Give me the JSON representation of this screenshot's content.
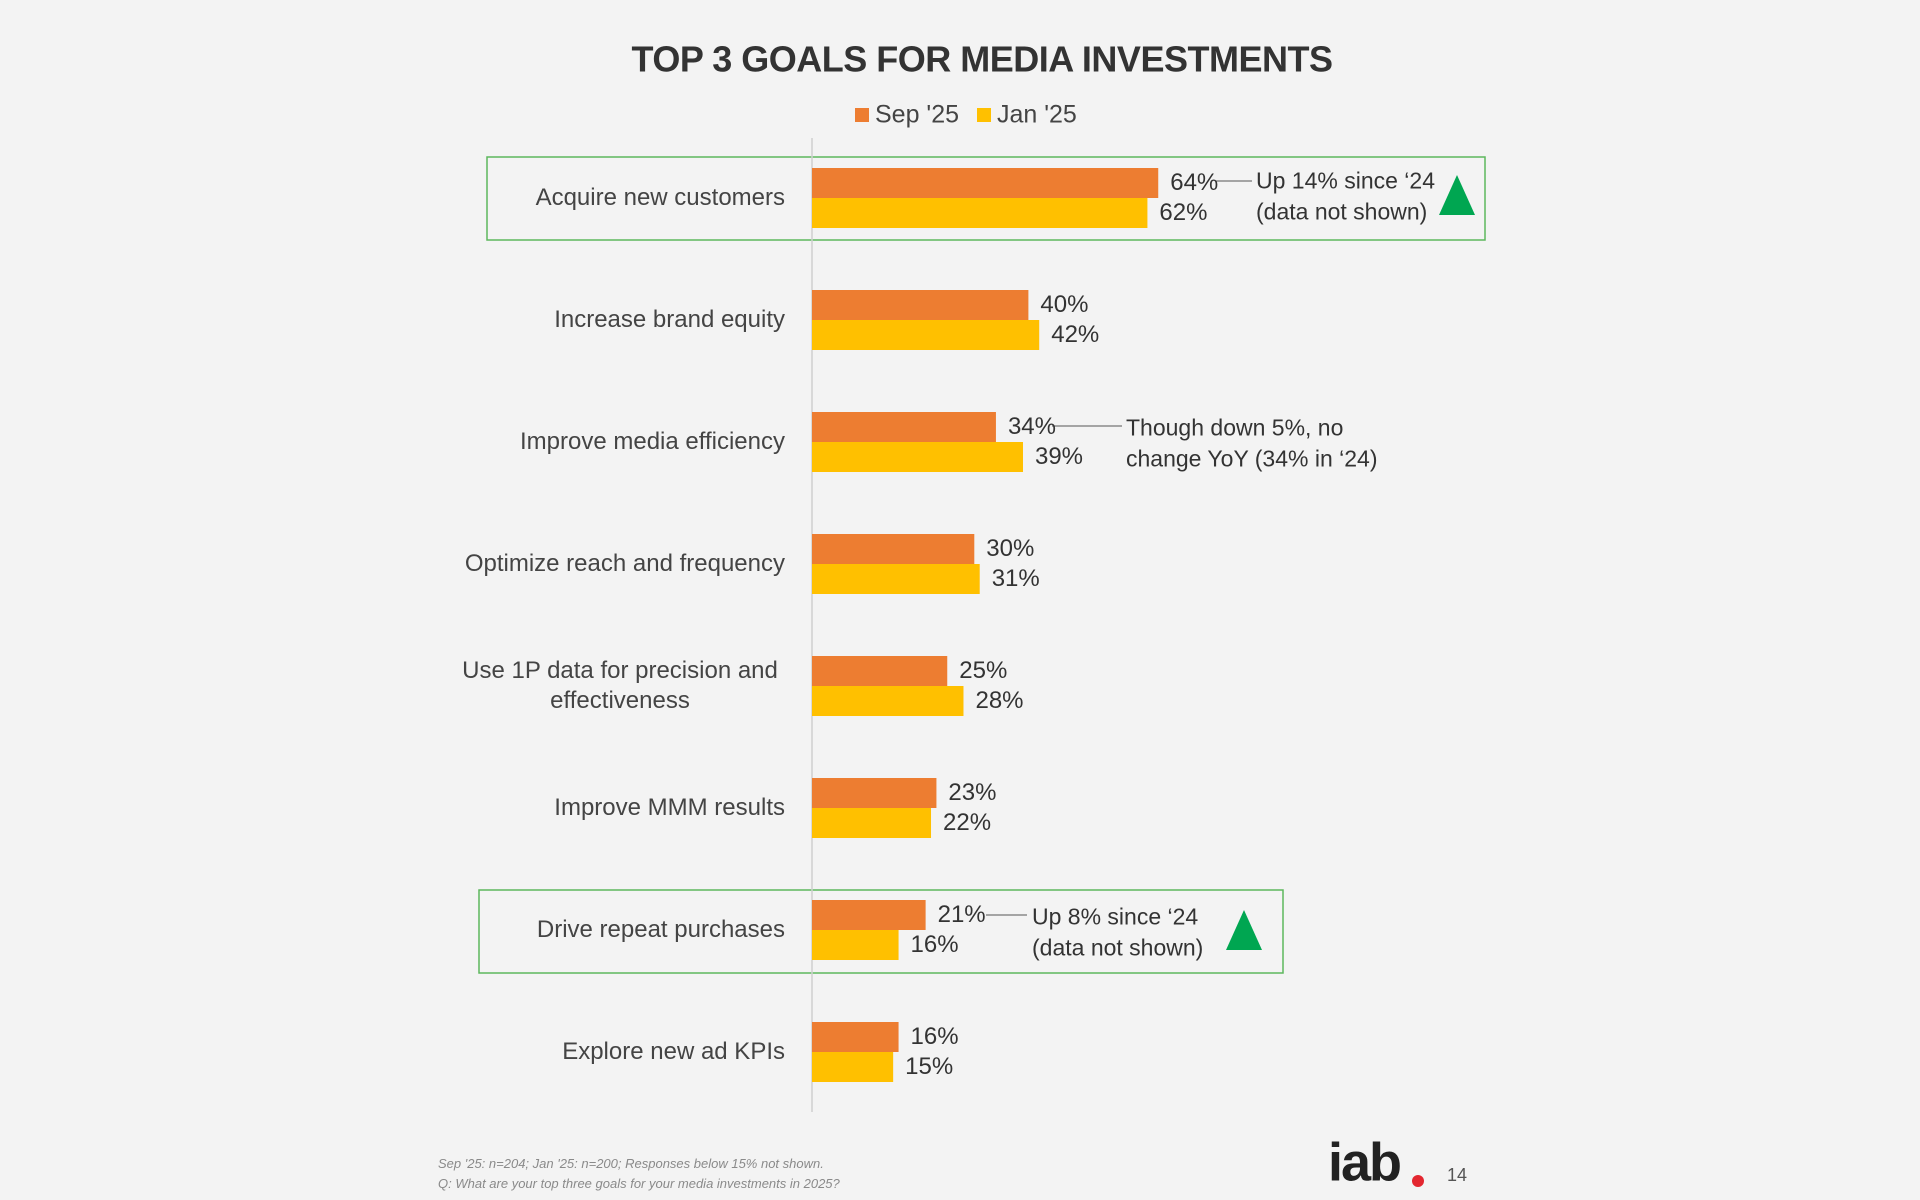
{
  "chart_data": {
    "type": "bar",
    "orientation": "horizontal",
    "title": "TOP 3 GOALS FOR MEDIA INVESTMENTS",
    "categories": [
      "Acquire new customers",
      "Increase brand equity",
      "Improve media efficiency",
      "Optimize reach and frequency",
      "Use 1P data for precision and effectiveness",
      "Improve MMM results",
      "Drive repeat purchases",
      "Explore new ad KPIs"
    ],
    "series": [
      {
        "name": "Sep '25",
        "color": "#ed7d31",
        "values": [
          64,
          40,
          34,
          30,
          25,
          23,
          21,
          16
        ],
        "value_labels": [
          "64%",
          "40%",
          "34%",
          "30%",
          "25%",
          "23%",
          "21%",
          "16%"
        ]
      },
      {
        "name": "Jan '25",
        "color": "#ffc000",
        "values": [
          62,
          42,
          39,
          31,
          28,
          22,
          16,
          15
        ],
        "value_labels": [
          "62%",
          "42%",
          "39%",
          "31%",
          "28%",
          "22%",
          "16%",
          "15%"
        ]
      }
    ],
    "legend": "top",
    "annotations": [
      {
        "lines": [
          "Up 14% since ‘24",
          "(data not shown)"
        ]
      },
      {
        "lines": [
          "Though down 5%, no",
          "change YoY (34% in ‘24)"
        ]
      },
      {
        "lines": [
          "Up 8% since ‘24",
          "(data not shown)"
        ]
      }
    ],
    "footnotes": [
      "Sep '25: n=204; Jan '25: n=200; Responses below 15% not shown.",
      "Q: What are your top three goals for your media investments in 2025?"
    ]
  },
  "logo": "iab",
  "page_number": "14"
}
